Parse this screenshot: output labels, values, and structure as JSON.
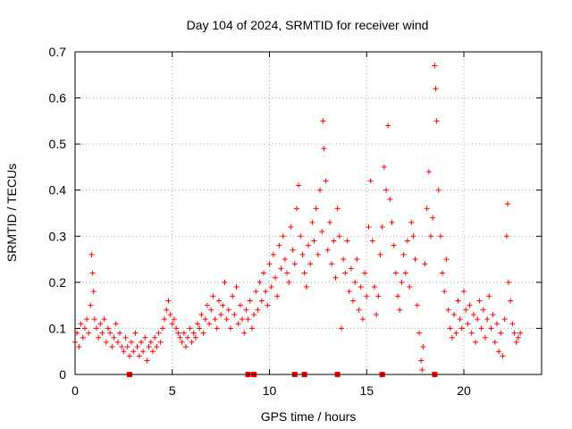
{
  "chart_data": {
    "type": "scatter",
    "title": "Day 104 of 2024, SRMTID for receiver wind",
    "xlabel": "GPS time / hours",
    "ylabel": "SRMTID / TECUs",
    "xlim": [
      0,
      24
    ],
    "ylim": [
      0,
      0.7
    ],
    "xticks": [
      "0",
      "5",
      "10",
      "15",
      "20"
    ],
    "yticks": [
      "0",
      "0.1",
      "0.2",
      "0.3",
      "0.4",
      "0.5",
      "0.6",
      "0.7"
    ],
    "grid": true,
    "marker": "plus",
    "color": "#ff0000",
    "series": [
      {
        "name": "SRMTID",
        "values": [
          [
            0.0,
            0.07
          ],
          [
            0.1,
            0.09
          ],
          [
            0.2,
            0.06
          ],
          [
            0.3,
            0.11
          ],
          [
            0.4,
            0.08
          ],
          [
            0.5,
            0.1
          ],
          [
            0.6,
            0.12
          ],
          [
            0.7,
            0.09
          ],
          [
            0.8,
            0.15
          ],
          [
            0.85,
            0.26
          ],
          [
            0.9,
            0.22
          ],
          [
            0.95,
            0.18
          ],
          [
            1.0,
            0.12
          ],
          [
            1.1,
            0.1
          ],
          [
            1.2,
            0.08
          ],
          [
            1.3,
            0.11
          ],
          [
            1.4,
            0.09
          ],
          [
            1.5,
            0.12
          ],
          [
            1.6,
            0.07
          ],
          [
            1.7,
            0.1
          ],
          [
            1.8,
            0.09
          ],
          [
            1.9,
            0.06
          ],
          [
            2.0,
            0.08
          ],
          [
            2.1,
            0.11
          ],
          [
            2.2,
            0.07
          ],
          [
            2.3,
            0.09
          ],
          [
            2.4,
            0.06
          ],
          [
            2.5,
            0.05
          ],
          [
            2.6,
            0.08
          ],
          [
            2.7,
            0.06
          ],
          [
            2.8,
            0.04
          ],
          [
            2.9,
            0.07
          ],
          [
            3.0,
            0.05
          ],
          [
            3.1,
            0.09
          ],
          [
            3.2,
            0.06
          ],
          [
            3.3,
            0.04
          ],
          [
            3.4,
            0.07
          ],
          [
            3.5,
            0.05
          ],
          [
            3.6,
            0.08
          ],
          [
            3.7,
            0.03
          ],
          [
            3.8,
            0.06
          ],
          [
            3.9,
            0.07
          ],
          [
            4.0,
            0.05
          ],
          [
            4.1,
            0.08
          ],
          [
            4.2,
            0.06
          ],
          [
            4.3,
            0.09
          ],
          [
            4.4,
            0.07
          ],
          [
            4.5,
            0.1
          ],
          [
            4.6,
            0.12
          ],
          [
            4.7,
            0.14
          ],
          [
            4.8,
            0.16
          ],
          [
            4.9,
            0.13
          ],
          [
            5.0,
            0.11
          ],
          [
            5.1,
            0.12
          ],
          [
            5.2,
            0.1
          ],
          [
            5.3,
            0.09
          ],
          [
            5.4,
            0.08
          ],
          [
            5.5,
            0.07
          ],
          [
            5.6,
            0.09
          ],
          [
            5.7,
            0.06
          ],
          [
            5.8,
            0.08
          ],
          [
            5.9,
            0.1
          ],
          [
            6.0,
            0.07
          ],
          [
            6.1,
            0.09
          ],
          [
            6.2,
            0.08
          ],
          [
            6.3,
            0.11
          ],
          [
            6.4,
            0.1
          ],
          [
            6.5,
            0.13
          ],
          [
            6.6,
            0.09
          ],
          [
            6.7,
            0.12
          ],
          [
            6.8,
            0.15
          ],
          [
            6.9,
            0.11
          ],
          [
            7.0,
            0.14
          ],
          [
            7.1,
            0.17
          ],
          [
            7.2,
            0.12
          ],
          [
            7.3,
            0.1
          ],
          [
            7.4,
            0.16
          ],
          [
            7.5,
            0.13
          ],
          [
            7.6,
            0.15
          ],
          [
            7.7,
            0.2
          ],
          [
            7.8,
            0.12
          ],
          [
            7.9,
            0.14
          ],
          [
            8.0,
            0.1
          ],
          [
            8.1,
            0.17
          ],
          [
            8.2,
            0.13
          ],
          [
            8.3,
            0.19
          ],
          [
            8.4,
            0.11
          ],
          [
            8.5,
            0.15
          ],
          [
            8.6,
            0.12
          ],
          [
            8.7,
            0.09
          ],
          [
            8.8,
            0.14
          ],
          [
            8.9,
            0.12
          ],
          [
            9.0,
            0.16
          ],
          [
            9.1,
            0.1
          ],
          [
            9.2,
            0.13
          ],
          [
            9.3,
            0.18
          ],
          [
            9.4,
            0.14
          ],
          [
            9.5,
            0.2
          ],
          [
            9.6,
            0.16
          ],
          [
            9.7,
            0.22
          ],
          [
            9.8,
            0.18
          ],
          [
            9.9,
            0.15
          ],
          [
            10.0,
            0.24
          ],
          [
            10.1,
            0.19
          ],
          [
            10.2,
            0.26
          ],
          [
            10.3,
            0.21
          ],
          [
            10.4,
            0.17
          ],
          [
            10.5,
            0.28
          ],
          [
            10.6,
            0.23
          ],
          [
            10.7,
            0.3
          ],
          [
            10.8,
            0.25
          ],
          [
            10.9,
            0.22
          ],
          [
            11.0,
            0.2
          ],
          [
            11.1,
            0.32
          ],
          [
            11.2,
            0.27
          ],
          [
            11.3,
            0.24
          ],
          [
            11.4,
            0.36
          ],
          [
            11.5,
            0.41
          ],
          [
            11.6,
            0.3
          ],
          [
            11.7,
            0.26
          ],
          [
            11.8,
            0.22
          ],
          [
            11.9,
            0.19
          ],
          [
            12.0,
            0.28
          ],
          [
            12.1,
            0.24
          ],
          [
            12.2,
            0.33
          ],
          [
            12.3,
            0.29
          ],
          [
            12.4,
            0.36
          ],
          [
            12.5,
            0.26
          ],
          [
            12.6,
            0.4
          ],
          [
            12.7,
            0.31
          ],
          [
            12.75,
            0.55
          ],
          [
            12.8,
            0.49
          ],
          [
            12.9,
            0.42
          ],
          [
            13.0,
            0.27
          ],
          [
            13.1,
            0.33
          ],
          [
            13.2,
            0.24
          ],
          [
            13.3,
            0.29
          ],
          [
            13.4,
            0.21
          ],
          [
            13.5,
            0.36
          ],
          [
            13.6,
            0.3
          ],
          [
            13.7,
            0.1
          ],
          [
            13.8,
            0.25
          ],
          [
            13.9,
            0.22
          ],
          [
            14.0,
            0.29
          ],
          [
            14.1,
            0.18
          ],
          [
            14.2,
            0.23
          ],
          [
            14.3,
            0.16
          ],
          [
            14.4,
            0.2
          ],
          [
            14.5,
            0.25
          ],
          [
            14.6,
            0.14
          ],
          [
            14.7,
            0.19
          ],
          [
            14.8,
            0.12
          ],
          [
            14.9,
            0.22
          ],
          [
            15.0,
            0.17
          ],
          [
            15.1,
            0.32
          ],
          [
            15.2,
            0.42
          ],
          [
            15.3,
            0.29
          ],
          [
            15.4,
            0.19
          ],
          [
            15.5,
            0.13
          ],
          [
            15.6,
            0.17
          ],
          [
            15.7,
            0.26
          ],
          [
            15.8,
            0.32
          ],
          [
            15.9,
            0.45
          ],
          [
            16.0,
            0.4
          ],
          [
            16.1,
            0.54
          ],
          [
            16.2,
            0.38
          ],
          [
            16.3,
            0.33
          ],
          [
            16.4,
            0.28
          ],
          [
            16.5,
            0.22
          ],
          [
            16.6,
            0.17
          ],
          [
            16.7,
            0.14
          ],
          [
            16.8,
            0.2
          ],
          [
            16.9,
            0.26
          ],
          [
            17.0,
            0.22
          ],
          [
            17.1,
            0.29
          ],
          [
            17.2,
            0.19
          ],
          [
            17.3,
            0.33
          ],
          [
            17.4,
            0.3
          ],
          [
            17.5,
            0.25
          ],
          [
            17.6,
            0.15
          ],
          [
            17.7,
            0.09
          ],
          [
            17.8,
            0.03
          ],
          [
            17.85,
            0.01
          ],
          [
            17.9,
            0.06
          ],
          [
            18.0,
            0.24
          ],
          [
            18.1,
            0.36
          ],
          [
            18.2,
            0.44
          ],
          [
            18.3,
            0.3
          ],
          [
            18.4,
            0.34
          ],
          [
            18.5,
            0.67
          ],
          [
            18.55,
            0.62
          ],
          [
            18.6,
            0.55
          ],
          [
            18.7,
            0.4
          ],
          [
            18.8,
            0.3
          ],
          [
            18.9,
            0.22
          ],
          [
            19.0,
            0.18
          ],
          [
            19.1,
            0.25
          ],
          [
            19.2,
            0.14
          ],
          [
            19.3,
            0.1
          ],
          [
            19.4,
            0.08
          ],
          [
            19.5,
            0.13
          ],
          [
            19.6,
            0.09
          ],
          [
            19.7,
            0.16
          ],
          [
            19.8,
            0.12
          ],
          [
            19.9,
            0.1
          ],
          [
            20.0,
            0.18
          ],
          [
            20.1,
            0.14
          ],
          [
            20.2,
            0.11
          ],
          [
            20.3,
            0.15
          ],
          [
            20.4,
            0.09
          ],
          [
            20.5,
            0.13
          ],
          [
            20.6,
            0.07
          ],
          [
            20.7,
            0.12
          ],
          [
            20.8,
            0.16
          ],
          [
            20.9,
            0.1
          ],
          [
            21.0,
            0.14
          ],
          [
            21.1,
            0.08
          ],
          [
            21.2,
            0.12
          ],
          [
            21.3,
            0.17
          ],
          [
            21.4,
            0.1
          ],
          [
            21.5,
            0.13
          ],
          [
            21.6,
            0.07
          ],
          [
            21.7,
            0.11
          ],
          [
            21.8,
            0.05
          ],
          [
            21.9,
            0.09
          ],
          [
            22.0,
            0.04
          ],
          [
            22.1,
            0.12
          ],
          [
            22.2,
            0.3
          ],
          [
            22.25,
            0.37
          ],
          [
            22.3,
            0.2
          ],
          [
            22.4,
            0.16
          ],
          [
            22.5,
            0.11
          ],
          [
            22.6,
            0.09
          ],
          [
            22.7,
            0.07
          ],
          [
            22.8,
            0.08
          ],
          [
            22.9,
            0.09
          ]
        ]
      }
    ],
    "markers_at_zero": [
      2.8,
      8.9,
      9.2,
      11.3,
      11.8,
      13.5,
      15.8,
      18.5
    ]
  }
}
